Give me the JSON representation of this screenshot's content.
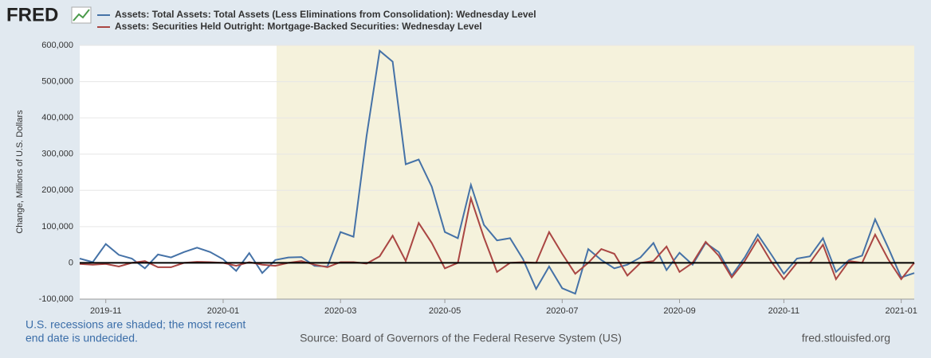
{
  "logo": "FRED",
  "chart_data": {
    "type": "line",
    "yaxis_label": "Change, Millions of U.S. Dollars",
    "categories": [
      null,
      null,
      "2019-11",
      null,
      null,
      null,
      null,
      null,
      null,
      null,
      null,
      "2020-01",
      null,
      null,
      null,
      null,
      null,
      null,
      null,
      null,
      "2020-03",
      null,
      null,
      null,
      null,
      null,
      null,
      null,
      "2020-05",
      null,
      null,
      null,
      null,
      null,
      null,
      null,
      null,
      "2020-07",
      null,
      null,
      null,
      null,
      null,
      null,
      null,
      null,
      "2020-09",
      null,
      null,
      null,
      null,
      null,
      null,
      null,
      "2020-11",
      null,
      null,
      null,
      null,
      null,
      null,
      null,
      null,
      "2021-01",
      null
    ],
    "series": [
      {
        "name": "Assets: Total Assets: Total Assets (Less Eliminations from Consolidation): Wednesday Level",
        "color": "#4572a7",
        "values": [
          12000,
          2000,
          52000,
          22000,
          12000,
          -15000,
          23000,
          15000,
          30000,
          42000,
          30000,
          10000,
          -22000,
          27000,
          -28000,
          8000,
          15000,
          16000,
          -8000,
          -10000,
          85000,
          72000,
          350000,
          585000,
          555000,
          272000,
          285000,
          210000,
          85000,
          68000,
          215000,
          105000,
          62000,
          68000,
          10000,
          -72000,
          -10000,
          -70000,
          -85000,
          38000,
          8000,
          -15000,
          -5000,
          15000,
          55000,
          -20000,
          28000,
          -5000,
          55000,
          30000,
          -35000,
          15000,
          78000,
          25000,
          -30000,
          12000,
          18000,
          68000,
          -25000,
          8000,
          20000,
          120000,
          42000,
          -40000,
          -28000
        ]
      },
      {
        "name": "Assets: Securities Held Outright: Mortgage-Backed Securities: Wednesday Level",
        "color": "#aa4643",
        "values": [
          -3000,
          -5000,
          -3000,
          -10000,
          0,
          5000,
          -12000,
          -12000,
          0,
          3000,
          2000,
          0,
          -8000,
          2000,
          -5000,
          -8000,
          0,
          5000,
          -5000,
          -12000,
          2000,
          2000,
          -2000,
          18000,
          75000,
          5000,
          110000,
          55000,
          -15000,
          0,
          178000,
          70000,
          -25000,
          0,
          2000,
          0,
          85000,
          25000,
          -30000,
          0,
          38000,
          25000,
          -35000,
          0,
          5000,
          45000,
          -25000,
          0,
          58000,
          20000,
          -40000,
          5000,
          65000,
          5000,
          -45000,
          0,
          0,
          50000,
          -45000,
          5000,
          0,
          78000,
          10000,
          -45000,
          0
        ]
      }
    ],
    "ylim": [
      -100000,
      600000
    ],
    "yticks": [
      {
        "value": -100000,
        "label": "-100,000"
      },
      0,
      {
        "value": 100000,
        "label": "100,000"
      },
      {
        "value": 200000,
        "label": "200,000"
      },
      {
        "value": 300000,
        "label": "300,000"
      },
      {
        "value": 400000,
        "label": "400,000"
      },
      {
        "value": 500000,
        "label": "500,000"
      },
      {
        "value": 600000,
        "label": "600,000"
      }
    ],
    "grid": true,
    "zero_line": true
  },
  "footer": {
    "note": [
      "U.S. recessions are shaded; the most recent",
      "end date is undecided."
    ],
    "source": "Source: Board of Governors of the Federal Reserve System (US)",
    "site": "fred.stlouisfed.org"
  }
}
